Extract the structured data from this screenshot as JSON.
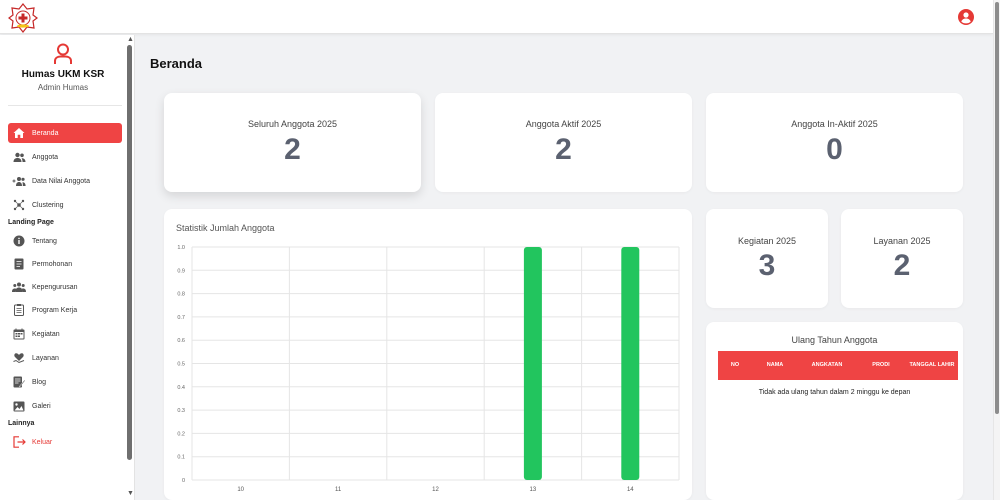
{
  "header": {
    "logo_icon": "ukm-ksr-logo-icon",
    "user_icon": "user-circle-icon"
  },
  "profile": {
    "icon": "user-outline-icon",
    "name": "Humas UKM KSR",
    "role": "Admin Humas"
  },
  "sidebar": {
    "items": [
      {
        "label": "Beranda",
        "icon": "home-icon",
        "active": true
      },
      {
        "label": "Anggota",
        "icon": "users-icon"
      },
      {
        "label": "Data Nilai Anggota",
        "icon": "user-group-add-icon"
      },
      {
        "label": "Clustering",
        "icon": "cluster-icon"
      }
    ],
    "landing_label": "Landing Page",
    "landing_items": [
      {
        "label": "Tentang",
        "icon": "info-icon"
      },
      {
        "label": "Permohonan",
        "icon": "document-icon"
      },
      {
        "label": "Kepengurusan",
        "icon": "team-icon"
      },
      {
        "label": "Program Kerja",
        "icon": "clipboard-icon"
      },
      {
        "label": "Kegiatan",
        "icon": "calendar-icon"
      },
      {
        "label": "Layanan",
        "icon": "hand-heart-icon"
      },
      {
        "label": "Blog",
        "icon": "blog-icon"
      },
      {
        "label": "Galeri",
        "icon": "gallery-icon"
      }
    ],
    "other_label": "Lainnya",
    "logout": {
      "label": "Keluar",
      "icon": "logout-icon"
    }
  },
  "page": {
    "title": "Beranda"
  },
  "stats": {
    "total": {
      "label": "Seluruh Anggota 2025",
      "value": "2"
    },
    "active": {
      "label": "Anggota Aktif 2025",
      "value": "2"
    },
    "inactive": {
      "label": "Anggota In-Aktif 2025",
      "value": "0"
    },
    "kegiatan": {
      "label": "Kegiatan 2025",
      "value": "3"
    },
    "layanan": {
      "label": "Layanan 2025",
      "value": "2"
    }
  },
  "chart_title": "Statistik Jumlah Anggota",
  "chart_data": {
    "type": "bar",
    "title": "Statistik Jumlah Anggota",
    "categories": [
      "10",
      "11",
      "12",
      "13",
      "14"
    ],
    "values": [
      0,
      0,
      0,
      1,
      1
    ],
    "ylim": [
      0,
      1.0
    ],
    "yticks": [
      "0",
      "0.1",
      "0.2",
      "0.3",
      "0.4",
      "0.5",
      "0.6",
      "0.7",
      "0.8",
      "0.9",
      "1.0"
    ],
    "grid": true,
    "bar_color": "#22c55e"
  },
  "birthday": {
    "title": "Ulang Tahun Anggota",
    "columns": [
      "NO",
      "NAMA",
      "ANGKATAN",
      "PRODI",
      "TANGGAL LAHIR"
    ],
    "empty_text": "Tidak ada ulang tahun dalam 2 minggu ke depan"
  },
  "colors": {
    "accent": "#ef4444",
    "bar": "#22c55e",
    "stat_value": "#5b6170"
  }
}
